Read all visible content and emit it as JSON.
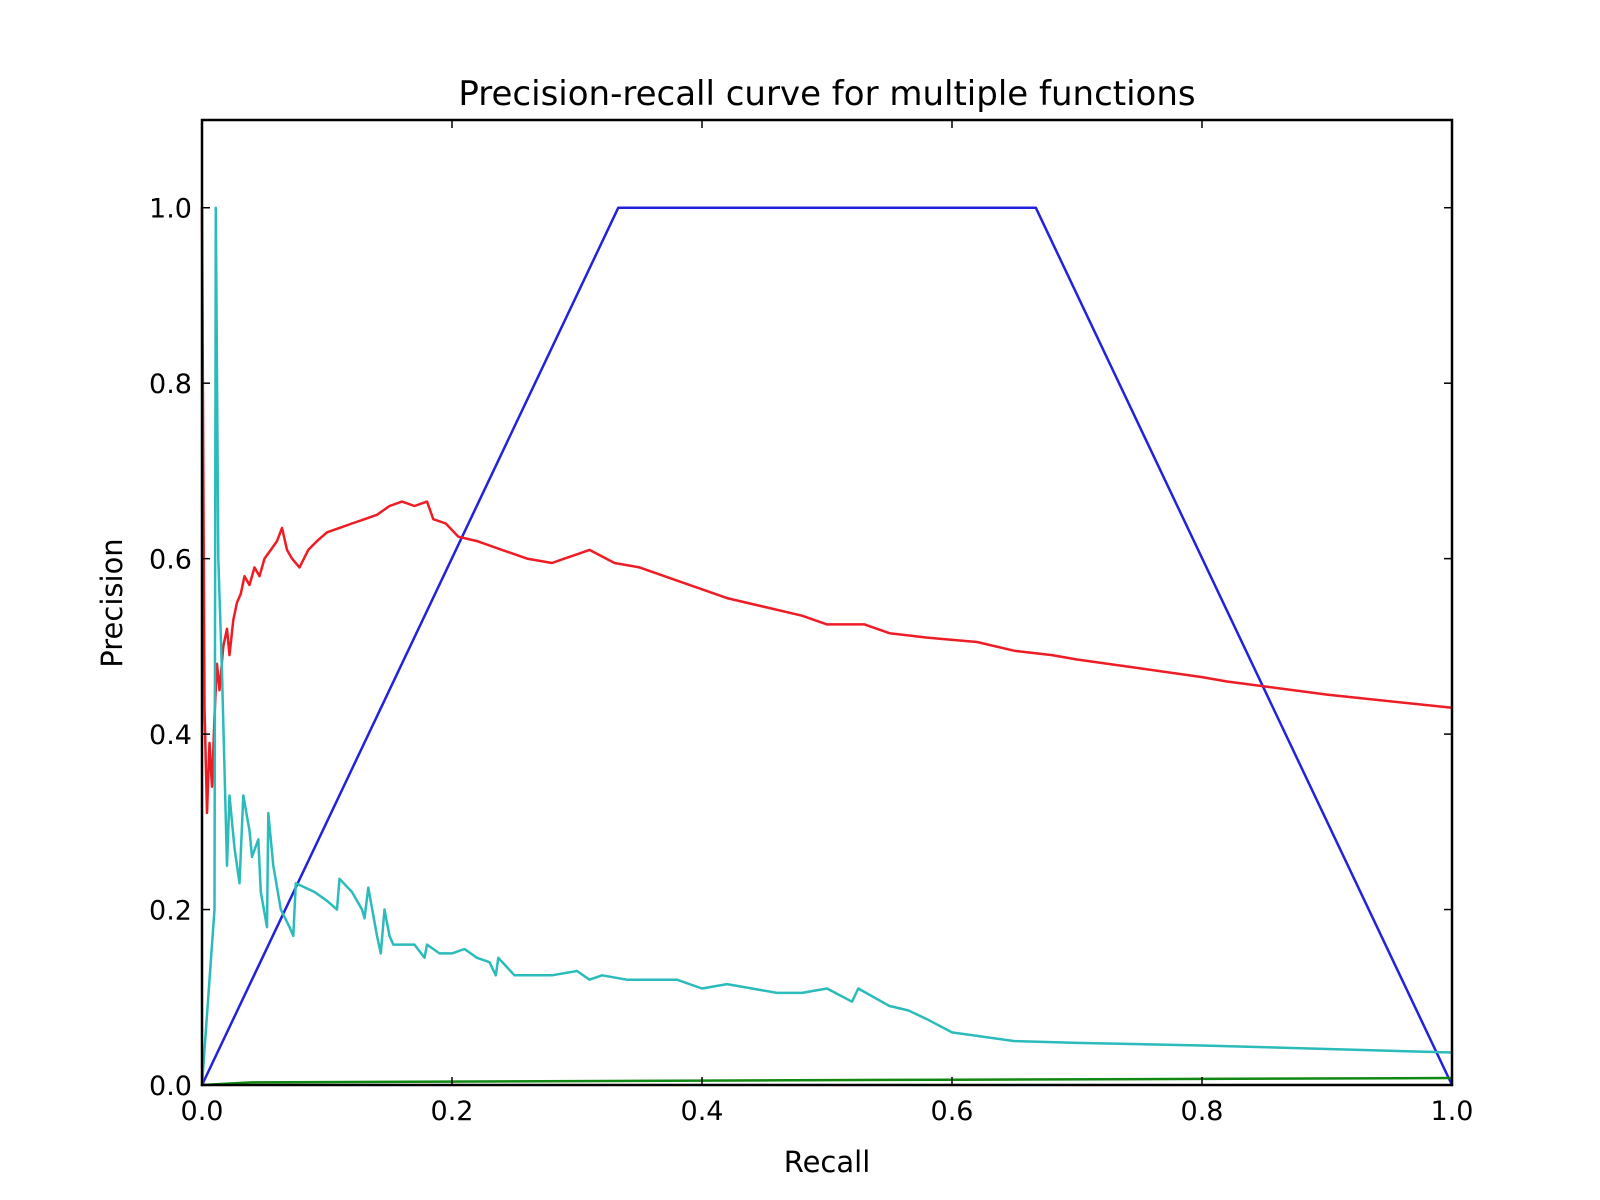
{
  "chart_data": {
    "type": "line",
    "title": "Precision-recall curve for multiple functions",
    "xlabel": "Recall",
    "ylabel": "Precision",
    "xlim": [
      0,
      1
    ],
    "ylim": [
      0,
      1.1
    ],
    "xticks": [
      "0.0",
      "0.2",
      "0.4",
      "0.6",
      "0.8",
      "1.0"
    ],
    "yticks": [
      "0.0",
      "0.2",
      "0.4",
      "0.6",
      "0.8",
      "1.0"
    ],
    "xtick_values": [
      0,
      0.2,
      0.4,
      0.6,
      0.8,
      1.0
    ],
    "ytick_values": [
      0,
      0.2,
      0.4,
      0.6,
      0.8,
      1.0
    ],
    "grid": false,
    "legend": "none",
    "series": [
      {
        "color": "#2222dd",
        "points": [
          [
            0,
            0
          ],
          [
            0.333,
            1.0
          ],
          [
            0.667,
            1.0
          ],
          [
            1.0,
            0
          ]
        ]
      },
      {
        "color": "#ee1c24",
        "points": [
          [
            0.0,
            1.0
          ],
          [
            0.002,
            0.43
          ],
          [
            0.004,
            0.31
          ],
          [
            0.006,
            0.39
          ],
          [
            0.008,
            0.34
          ],
          [
            0.01,
            0.42
          ],
          [
            0.012,
            0.48
          ],
          [
            0.014,
            0.45
          ],
          [
            0.017,
            0.5
          ],
          [
            0.02,
            0.52
          ],
          [
            0.022,
            0.49
          ],
          [
            0.025,
            0.53
          ],
          [
            0.028,
            0.55
          ],
          [
            0.031,
            0.56
          ],
          [
            0.034,
            0.58
          ],
          [
            0.038,
            0.57
          ],
          [
            0.042,
            0.59
          ],
          [
            0.046,
            0.58
          ],
          [
            0.05,
            0.6
          ],
          [
            0.055,
            0.61
          ],
          [
            0.06,
            0.62
          ],
          [
            0.064,
            0.635
          ],
          [
            0.068,
            0.61
          ],
          [
            0.072,
            0.6
          ],
          [
            0.078,
            0.59
          ],
          [
            0.085,
            0.61
          ],
          [
            0.092,
            0.62
          ],
          [
            0.1,
            0.63
          ],
          [
            0.11,
            0.635
          ],
          [
            0.12,
            0.64
          ],
          [
            0.13,
            0.645
          ],
          [
            0.14,
            0.65
          ],
          [
            0.15,
            0.66
          ],
          [
            0.16,
            0.665
          ],
          [
            0.17,
            0.66
          ],
          [
            0.18,
            0.665
          ],
          [
            0.185,
            0.645
          ],
          [
            0.195,
            0.64
          ],
          [
            0.205,
            0.625
          ],
          [
            0.22,
            0.62
          ],
          [
            0.24,
            0.61
          ],
          [
            0.26,
            0.6
          ],
          [
            0.28,
            0.595
          ],
          [
            0.29,
            0.6
          ],
          [
            0.3,
            0.605
          ],
          [
            0.31,
            0.61
          ],
          [
            0.33,
            0.595
          ],
          [
            0.35,
            0.59
          ],
          [
            0.38,
            0.575
          ],
          [
            0.4,
            0.565
          ],
          [
            0.42,
            0.555
          ],
          [
            0.45,
            0.545
          ],
          [
            0.48,
            0.535
          ],
          [
            0.5,
            0.525
          ],
          [
            0.53,
            0.525
          ],
          [
            0.55,
            0.515
          ],
          [
            0.58,
            0.51
          ],
          [
            0.62,
            0.505
          ],
          [
            0.65,
            0.495
          ],
          [
            0.68,
            0.49
          ],
          [
            0.7,
            0.485
          ],
          [
            0.75,
            0.475
          ],
          [
            0.8,
            0.465
          ],
          [
            0.82,
            0.46
          ],
          [
            0.9,
            0.445
          ],
          [
            1.0,
            0.43
          ]
        ]
      },
      {
        "color": "#2bbbbb",
        "points": [
          [
            0,
            0
          ],
          [
            0.01,
            0.2
          ],
          [
            0.011,
            1.0
          ],
          [
            0.013,
            0.6
          ],
          [
            0.016,
            0.47
          ],
          [
            0.02,
            0.25
          ],
          [
            0.022,
            0.33
          ],
          [
            0.026,
            0.27
          ],
          [
            0.03,
            0.23
          ],
          [
            0.033,
            0.33
          ],
          [
            0.038,
            0.29
          ],
          [
            0.04,
            0.26
          ],
          [
            0.045,
            0.28
          ],
          [
            0.047,
            0.22
          ],
          [
            0.052,
            0.18
          ],
          [
            0.053,
            0.31
          ],
          [
            0.057,
            0.25
          ],
          [
            0.063,
            0.2
          ],
          [
            0.07,
            0.18
          ],
          [
            0.073,
            0.17
          ],
          [
            0.075,
            0.23
          ],
          [
            0.09,
            0.22
          ],
          [
            0.1,
            0.21
          ],
          [
            0.108,
            0.2
          ],
          [
            0.11,
            0.235
          ],
          [
            0.12,
            0.22
          ],
          [
            0.128,
            0.2
          ],
          [
            0.13,
            0.19
          ],
          [
            0.133,
            0.225
          ],
          [
            0.14,
            0.17
          ],
          [
            0.143,
            0.15
          ],
          [
            0.146,
            0.2
          ],
          [
            0.15,
            0.17
          ],
          [
            0.153,
            0.16
          ],
          [
            0.17,
            0.16
          ],
          [
            0.178,
            0.145
          ],
          [
            0.18,
            0.16
          ],
          [
            0.19,
            0.15
          ],
          [
            0.2,
            0.15
          ],
          [
            0.21,
            0.155
          ],
          [
            0.22,
            0.145
          ],
          [
            0.23,
            0.14
          ],
          [
            0.235,
            0.125
          ],
          [
            0.237,
            0.145
          ],
          [
            0.25,
            0.125
          ],
          [
            0.28,
            0.125
          ],
          [
            0.3,
            0.13
          ],
          [
            0.31,
            0.12
          ],
          [
            0.32,
            0.125
          ],
          [
            0.34,
            0.12
          ],
          [
            0.36,
            0.12
          ],
          [
            0.38,
            0.12
          ],
          [
            0.4,
            0.11
          ],
          [
            0.42,
            0.115
          ],
          [
            0.44,
            0.11
          ],
          [
            0.46,
            0.105
          ],
          [
            0.48,
            0.105
          ],
          [
            0.5,
            0.11
          ],
          [
            0.52,
            0.095
          ],
          [
            0.525,
            0.11
          ],
          [
            0.55,
            0.09
          ],
          [
            0.565,
            0.085
          ],
          [
            0.58,
            0.075
          ],
          [
            0.6,
            0.06
          ],
          [
            0.65,
            0.05
          ],
          [
            0.7,
            0.048
          ],
          [
            0.8,
            0.045
          ],
          [
            1.0,
            0.037
          ]
        ]
      },
      {
        "color": "#118811",
        "points": [
          [
            0,
            0
          ],
          [
            0.04,
            0.003
          ],
          [
            0.4,
            0.005
          ],
          [
            0.6,
            0.006
          ],
          [
            0.8,
            0.007
          ],
          [
            1.0,
            0.008
          ]
        ]
      }
    ]
  }
}
